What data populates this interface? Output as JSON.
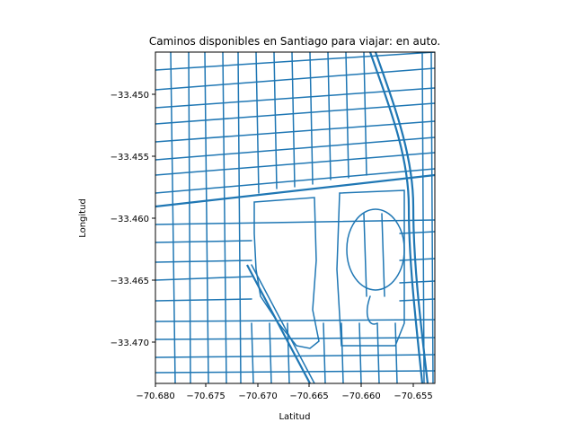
{
  "title": "Caminos disponibles en Santiago para viajar: en auto.",
  "xlabel": "Latitud",
  "ylabel": "Longitud",
  "x_ticks": [
    "−70.680",
    "−70.675",
    "−70.670",
    "−70.665",
    "−70.660",
    "−70.655"
  ],
  "y_ticks": [
    "−33.450",
    "−33.455",
    "−33.460",
    "−33.465",
    "−33.470"
  ],
  "colors": {
    "road": "#1f77b4",
    "frame": "#000000"
  }
}
